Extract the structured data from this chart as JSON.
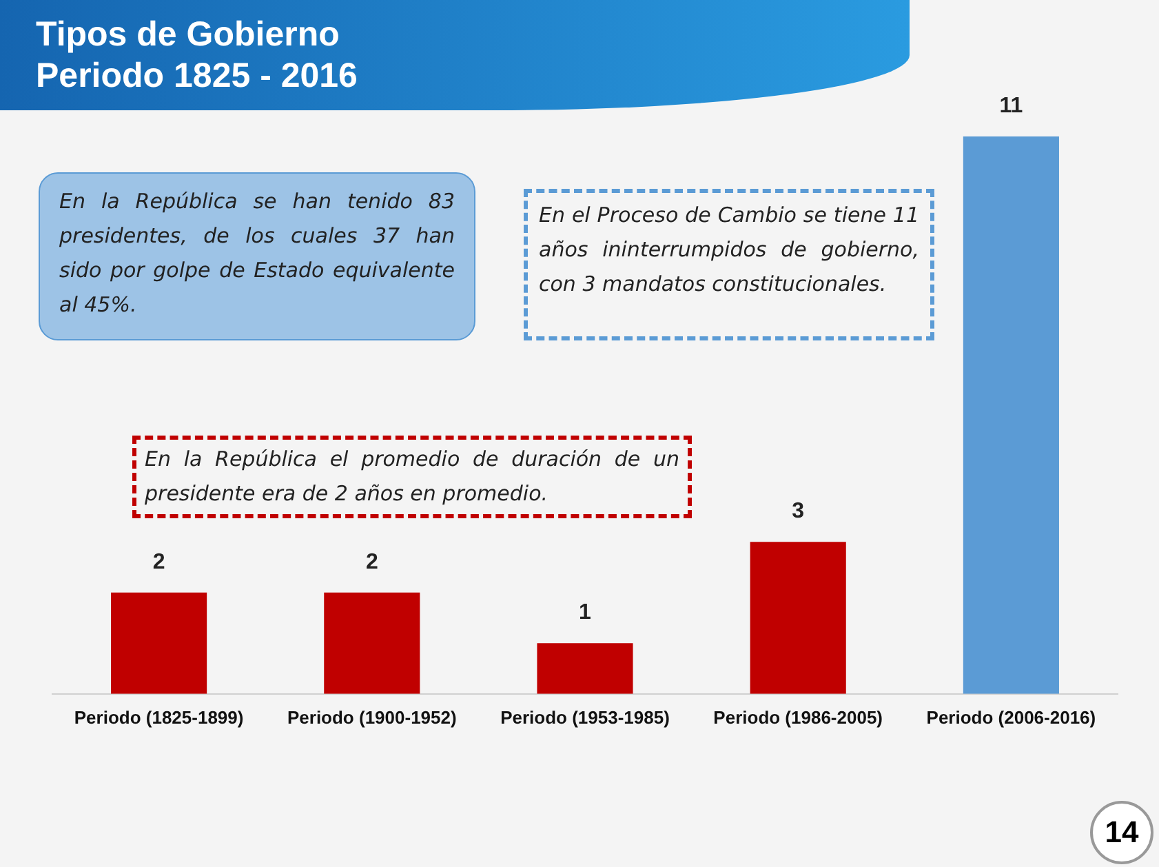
{
  "chart_data": {
    "type": "bar",
    "title": "Tipos de Gobierno\nPeriodo 1825 - 2016",
    "categories": [
      "Periodo (1825-1899)",
      "Periodo (1900-1952)",
      "Periodo (1953-1985)",
      "Periodo (1986-2005)",
      "Periodo (2006-2016)"
    ],
    "values": [
      2,
      2,
      1,
      3,
      11
    ],
    "colors": [
      "#c00000",
      "#c00000",
      "#c00000",
      "#c00000",
      "#5b9bd5"
    ],
    "data_labels": true,
    "grid": false,
    "legend": false,
    "annotations": [
      "En la República se han tenido 83 presidentes, de los cuales 37 han sido por golpe de Estado equivalente al 45%.",
      "En el Proceso de Cambio se tiene 11 años ininterrumpidos de gobierno, con 3 mandatos constitucionales.",
      "En la República el promedio de duración de un presidente era de 2 años en promedio.",
      "14"
    ]
  }
}
